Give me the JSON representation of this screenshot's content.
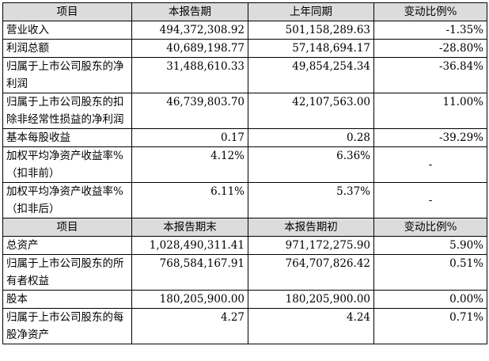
{
  "header1": [
    "项目",
    "本报告期",
    "上年同期",
    "变动比例%"
  ],
  "rows1": [
    {
      "label": "营业收入",
      "current": "494,372,308.92",
      "prior": "501,158,289.63",
      "change": "-1.35%"
    },
    {
      "label": "利润总额",
      "current": "40,689,198.77",
      "prior": "57,148,694.17",
      "change": "-28.80%"
    },
    {
      "label": "归属于上市公司股东的净利润",
      "current": "31,488,610.33",
      "prior": "49,854,254.34",
      "change": "-36.84%"
    },
    {
      "label": "归属于上市公司股东的扣除非经常性损益的净利润",
      "current": "46,739,803.70",
      "prior": "42,107,563.00",
      "change": "11.00%"
    },
    {
      "label": "基本每股收益",
      "current": "0.17",
      "prior": "0.28",
      "change": "-39.29%"
    },
    {
      "label": "加权平均净资产收益率%（扣非前）",
      "current": "4.12%",
      "prior": "6.36%",
      "change": "-"
    },
    {
      "label": "加权平均净资产收益率%（扣非后）",
      "current": "6.11%",
      "prior": "5.37%",
      "change": "-"
    }
  ],
  "header2": [
    "项目",
    "本报告期末",
    "本报告期初",
    "变动比例%"
  ],
  "rows2": [
    {
      "label": "总资产",
      "current": "1,028,490,311.41",
      "prior": "971,172,275.90",
      "change": "5.90%"
    },
    {
      "label": "归属于上市公司股东的所有者权益",
      "current": "768,584,167.91",
      "prior": "764,707,826.42",
      "change": "0.51%"
    },
    {
      "label": "股本",
      "current": "180,205,900.00",
      "prior": "180,205,900.00",
      "change": "0.00%"
    },
    {
      "label": "归属于上市公司股东的每股净资产",
      "current": "4.27",
      "prior": "4.24",
      "change": "0.71%"
    }
  ]
}
